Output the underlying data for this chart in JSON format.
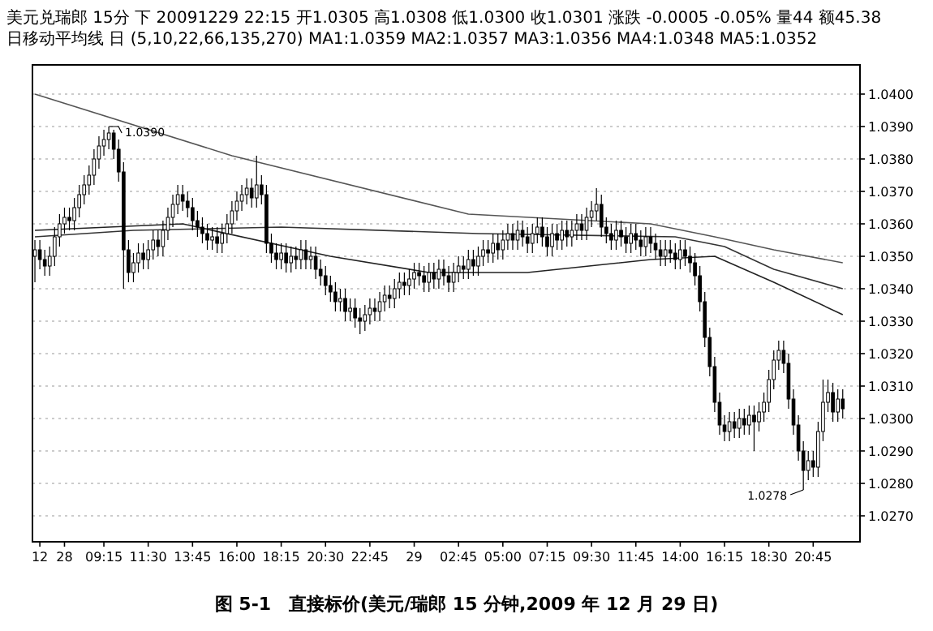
{
  "chart_data": {
    "type": "candlestick",
    "title": "图 5-1　直接标价(美元/瑞郎 15 分钟,2009 年 12 月 29 日)",
    "annotations": [
      "美元兑瑞郎 15分 下 20091229 22:15 开1.0305 高1.0308 低1.0300 收1.0301 涨跌 -0.0005 -0.05% 量44 额45.38",
      "日移动平均线 日 (5,10,22,66,135,270) MA1:1.0359 MA2:1.0357 MA3:1.0356 MA4:1.0348 MA5:1.0352",
      "1.0390",
      "1.0278"
    ],
    "categories": [
      null,
      "12",
      null,
      null,
      null,
      null,
      "28",
      null,
      null,
      null,
      null,
      null,
      null,
      null,
      "09:15",
      null,
      null,
      null,
      null,
      null,
      null,
      null,
      null,
      "11:30",
      null,
      null,
      null,
      null,
      null,
      null,
      null,
      null,
      "13:45",
      null,
      null,
      null,
      null,
      null,
      null,
      null,
      null,
      "16:00",
      null,
      null,
      null,
      null,
      null,
      null,
      null,
      null,
      "18:15",
      null,
      null,
      null,
      null,
      null,
      null,
      null,
      null,
      "20:30",
      null,
      null,
      null,
      null,
      null,
      null,
      null,
      null,
      "22:45",
      null,
      null,
      null,
      null,
      null,
      null,
      null,
      null,
      "29",
      null,
      null,
      null,
      null,
      null,
      null,
      null,
      null,
      "02:45",
      null,
      null,
      null,
      null,
      null,
      null,
      null,
      null,
      "05:00",
      null,
      null,
      null,
      null,
      null,
      null,
      null,
      null,
      "07:15",
      null,
      null,
      null,
      null,
      null,
      null,
      null,
      null,
      "09:30",
      null,
      null,
      null,
      null,
      null,
      null,
      null,
      null,
      "11:45",
      null,
      null,
      null,
      null,
      null,
      null,
      null,
      null,
      "14:00",
      null,
      null,
      null,
      null,
      null,
      null,
      null,
      null,
      "16:15",
      null,
      null,
      null,
      null,
      null,
      null,
      null,
      null,
      "18:30",
      null,
      null,
      null,
      null,
      null,
      null,
      null,
      null,
      "20:45",
      null,
      null,
      null,
      null,
      null,
      null,
      null,
      null,
      null
    ],
    "ohlc": [
      [
        1.035,
        1.0355,
        1.0342,
        1.0352
      ],
      [
        1.0352,
        1.0355,
        1.0346,
        1.0349
      ],
      [
        1.0349,
        1.0352,
        1.0344,
        1.0347
      ],
      [
        1.0347,
        1.0353,
        1.0344,
        1.035
      ],
      [
        1.035,
        1.0359,
        1.0347,
        1.0356
      ],
      [
        1.0356,
        1.0363,
        1.0353,
        1.036
      ],
      [
        1.036,
        1.0365,
        1.0357,
        1.0362
      ],
      [
        1.0362,
        1.0365,
        1.0358,
        1.0361
      ],
      [
        1.0361,
        1.0368,
        1.0358,
        1.0365
      ],
      [
        1.0365,
        1.0372,
        1.0362,
        1.0369
      ],
      [
        1.0369,
        1.0375,
        1.0366,
        1.0372
      ],
      [
        1.0372,
        1.0378,
        1.0369,
        1.0375
      ],
      [
        1.0375,
        1.0383,
        1.0372,
        1.038
      ],
      [
        1.038,
        1.0387,
        1.0377,
        1.0384
      ],
      [
        1.0384,
        1.0389,
        1.0381,
        1.0386
      ],
      [
        1.0386,
        1.039,
        1.0383,
        1.0388
      ],
      [
        1.0388,
        1.0389,
        1.038,
        1.0383
      ],
      [
        1.0383,
        1.0386,
        1.0373,
        1.0376
      ],
      [
        1.0376,
        1.0379,
        1.034,
        1.0352
      ],
      [
        1.0352,
        1.0355,
        1.0342,
        1.0345
      ],
      [
        1.0345,
        1.0351,
        1.0342,
        1.0348
      ],
      [
        1.0348,
        1.0354,
        1.0345,
        1.0351
      ],
      [
        1.0351,
        1.0354,
        1.0346,
        1.0349
      ],
      [
        1.0349,
        1.0355,
        1.0346,
        1.0352
      ],
      [
        1.0352,
        1.0358,
        1.0349,
        1.0355
      ],
      [
        1.0355,
        1.0358,
        1.035,
        1.0353
      ],
      [
        1.0353,
        1.0361,
        1.035,
        1.0358
      ],
      [
        1.0358,
        1.0365,
        1.0355,
        1.0362
      ],
      [
        1.0362,
        1.0369,
        1.0359,
        1.0366
      ],
      [
        1.0366,
        1.0372,
        1.0363,
        1.0369
      ],
      [
        1.0369,
        1.0372,
        1.0364,
        1.0367
      ],
      [
        1.0367,
        1.037,
        1.0362,
        1.0365
      ],
      [
        1.0365,
        1.0368,
        1.0358,
        1.0361
      ],
      [
        1.0361,
        1.0364,
        1.0356,
        1.0359
      ],
      [
        1.0359,
        1.0362,
        1.0354,
        1.0357
      ],
      [
        1.0357,
        1.036,
        1.0352,
        1.0355
      ],
      [
        1.0355,
        1.0359,
        1.0352,
        1.0356
      ],
      [
        1.0356,
        1.0359,
        1.0351,
        1.0354
      ],
      [
        1.0354,
        1.036,
        1.0351,
        1.0357
      ],
      [
        1.0357,
        1.0363,
        1.0354,
        1.036
      ],
      [
        1.036,
        1.0367,
        1.0357,
        1.0364
      ],
      [
        1.0364,
        1.037,
        1.0361,
        1.0367
      ],
      [
        1.0367,
        1.0372,
        1.0364,
        1.0369
      ],
      [
        1.0369,
        1.0374,
        1.0366,
        1.0371
      ],
      [
        1.0371,
        1.0374,
        1.0365,
        1.0368
      ],
      [
        1.0368,
        1.0381,
        1.0365,
        1.0372
      ],
      [
        1.0372,
        1.0375,
        1.0366,
        1.0369
      ],
      [
        1.0369,
        1.0372,
        1.0351,
        1.0354
      ],
      [
        1.0354,
        1.0357,
        1.0348,
        1.0351
      ],
      [
        1.0351,
        1.0354,
        1.0346,
        1.0349
      ],
      [
        1.0349,
        1.0354,
        1.0346,
        1.0351
      ],
      [
        1.0351,
        1.0354,
        1.0345,
        1.0348
      ],
      [
        1.0348,
        1.0353,
        1.0345,
        1.035
      ],
      [
        1.035,
        1.0353,
        1.0346,
        1.0349
      ],
      [
        1.0349,
        1.0355,
        1.0346,
        1.0352
      ],
      [
        1.0352,
        1.0355,
        1.0346,
        1.0349
      ],
      [
        1.0349,
        1.0353,
        1.0346,
        1.035
      ],
      [
        1.035,
        1.0353,
        1.0343,
        1.0346
      ],
      [
        1.0346,
        1.0349,
        1.0341,
        1.0344
      ],
      [
        1.0344,
        1.0347,
        1.0338,
        1.0341
      ],
      [
        1.0341,
        1.0344,
        1.0336,
        1.0339
      ],
      [
        1.0339,
        1.0342,
        1.0333,
        1.0336
      ],
      [
        1.0336,
        1.034,
        1.0333,
        1.0337
      ],
      [
        1.0337,
        1.034,
        1.033,
        1.0333
      ],
      [
        1.0333,
        1.0337,
        1.033,
        1.0334
      ],
      [
        1.0334,
        1.0337,
        1.0328,
        1.0331
      ],
      [
        1.0331,
        1.0334,
        1.0326,
        1.033
      ],
      [
        1.033,
        1.0335,
        1.0327,
        1.0332
      ],
      [
        1.0332,
        1.0337,
        1.0329,
        1.0334
      ],
      [
        1.0334,
        1.0337,
        1.033,
        1.0333
      ],
      [
        1.0333,
        1.0339,
        1.033,
        1.0336
      ],
      [
        1.0336,
        1.0341,
        1.0333,
        1.0338
      ],
      [
        1.0338,
        1.0341,
        1.0334,
        1.0337
      ],
      [
        1.0337,
        1.0343,
        1.0334,
        1.034
      ],
      [
        1.034,
        1.0345,
        1.0337,
        1.0342
      ],
      [
        1.0342,
        1.0345,
        1.0338,
        1.0341
      ],
      [
        1.0341,
        1.0346,
        1.0338,
        1.0343
      ],
      [
        1.0343,
        1.0348,
        1.034,
        1.0345
      ],
      [
        1.0345,
        1.0348,
        1.0341,
        1.0344
      ],
      [
        1.0344,
        1.0347,
        1.0339,
        1.0342
      ],
      [
        1.0342,
        1.0348,
        1.0339,
        1.0345
      ],
      [
        1.0345,
        1.0348,
        1.034,
        1.0343
      ],
      [
        1.0343,
        1.0349,
        1.034,
        1.0346
      ],
      [
        1.0346,
        1.0349,
        1.0341,
        1.0344
      ],
      [
        1.0344,
        1.0347,
        1.0339,
        1.0342
      ],
      [
        1.0342,
        1.0348,
        1.0339,
        1.0345
      ],
      [
        1.0345,
        1.035,
        1.0342,
        1.0347
      ],
      [
        1.0347,
        1.035,
        1.0343,
        1.0346
      ],
      [
        1.0346,
        1.0352,
        1.0343,
        1.0349
      ],
      [
        1.0349,
        1.0352,
        1.0344,
        1.0347
      ],
      [
        1.0347,
        1.0353,
        1.0344,
        1.035
      ],
      [
        1.035,
        1.0355,
        1.0347,
        1.0352
      ],
      [
        1.0352,
        1.0355,
        1.0348,
        1.0351
      ],
      [
        1.0351,
        1.0357,
        1.0348,
        1.0354
      ],
      [
        1.0354,
        1.0357,
        1.0349,
        1.0352
      ],
      [
        1.0352,
        1.0358,
        1.0349,
        1.0355
      ],
      [
        1.0355,
        1.036,
        1.0352,
        1.0357
      ],
      [
        1.0357,
        1.036,
        1.0352,
        1.0355
      ],
      [
        1.0355,
        1.0361,
        1.0352,
        1.0358
      ],
      [
        1.0358,
        1.0361,
        1.0353,
        1.0356
      ],
      [
        1.0356,
        1.0359,
        1.0351,
        1.0354
      ],
      [
        1.0354,
        1.036,
        1.0351,
        1.0357
      ],
      [
        1.0357,
        1.0362,
        1.0354,
        1.0359
      ],
      [
        1.0359,
        1.0362,
        1.0353,
        1.0356
      ],
      [
        1.0356,
        1.0359,
        1.035,
        1.0353
      ],
      [
        1.0353,
        1.036,
        1.035,
        1.0357
      ],
      [
        1.0357,
        1.036,
        1.0352,
        1.0355
      ],
      [
        1.0355,
        1.0361,
        1.0352,
        1.0358
      ],
      [
        1.0358,
        1.0361,
        1.0353,
        1.0356
      ],
      [
        1.0356,
        1.0361,
        1.0353,
        1.0358
      ],
      [
        1.0358,
        1.0363,
        1.0355,
        1.036
      ],
      [
        1.036,
        1.0363,
        1.0355,
        1.0358
      ],
      [
        1.0358,
        1.0365,
        1.0355,
        1.0362
      ],
      [
        1.0362,
        1.0367,
        1.0359,
        1.0364
      ],
      [
        1.0364,
        1.0371,
        1.0361,
        1.0366
      ],
      [
        1.0366,
        1.0369,
        1.0356,
        1.0359
      ],
      [
        1.0359,
        1.0362,
        1.0354,
        1.0357
      ],
      [
        1.0357,
        1.036,
        1.0352,
        1.0355
      ],
      [
        1.0355,
        1.0361,
        1.0352,
        1.0358
      ],
      [
        1.0358,
        1.0361,
        1.0353,
        1.0356
      ],
      [
        1.0356,
        1.0359,
        1.0351,
        1.0354
      ],
      [
        1.0354,
        1.036,
        1.0351,
        1.0357
      ],
      [
        1.0357,
        1.036,
        1.0352,
        1.0355
      ],
      [
        1.0355,
        1.0358,
        1.035,
        1.0353
      ],
      [
        1.0353,
        1.0359,
        1.035,
        1.0356
      ],
      [
        1.0356,
        1.0359,
        1.0351,
        1.0354
      ],
      [
        1.0354,
        1.0357,
        1.0349,
        1.0352
      ],
      [
        1.0352,
        1.0355,
        1.0347,
        1.035
      ],
      [
        1.035,
        1.0355,
        1.0347,
        1.0352
      ],
      [
        1.0352,
        1.0355,
        1.0348,
        1.0351
      ],
      [
        1.0351,
        1.0354,
        1.0346,
        1.0349
      ],
      [
        1.0349,
        1.0355,
        1.0346,
        1.0352
      ],
      [
        1.0352,
        1.0355,
        1.0347,
        1.035
      ],
      [
        1.035,
        1.0353,
        1.0345,
        1.0348
      ],
      [
        1.0348,
        1.0351,
        1.0341,
        1.0344
      ],
      [
        1.0344,
        1.0347,
        1.0333,
        1.0336
      ],
      [
        1.0336,
        1.0339,
        1.0322,
        1.0325
      ],
      [
        1.0325,
        1.0328,
        1.0313,
        1.0316
      ],
      [
        1.0316,
        1.0319,
        1.0302,
        1.0305
      ],
      [
        1.0305,
        1.0308,
        1.0295,
        1.0298
      ],
      [
        1.0298,
        1.0301,
        1.0293,
        1.0296
      ],
      [
        1.0296,
        1.0302,
        1.0293,
        1.0299
      ],
      [
        1.0299,
        1.0302,
        1.0294,
        1.0297
      ],
      [
        1.0297,
        1.0303,
        1.0294,
        1.03
      ],
      [
        1.03,
        1.0303,
        1.0295,
        1.0298
      ],
      [
        1.0298,
        1.0304,
        1.0295,
        1.0301
      ],
      [
        1.0301,
        1.0304,
        1.029,
        1.0299
      ],
      [
        1.0299,
        1.0305,
        1.0296,
        1.0302
      ],
      [
        1.0302,
        1.0308,
        1.0299,
        1.0305
      ],
      [
        1.0305,
        1.0315,
        1.0302,
        1.0312
      ],
      [
        1.0312,
        1.0321,
        1.0309,
        1.0318
      ],
      [
        1.0318,
        1.0324,
        1.0315,
        1.0321
      ],
      [
        1.0321,
        1.0324,
        1.0314,
        1.0317
      ],
      [
        1.0317,
        1.032,
        1.0303,
        1.0306
      ],
      [
        1.0306,
        1.0309,
        1.0295,
        1.0298
      ],
      [
        1.0298,
        1.0301,
        1.0287,
        1.029
      ],
      [
        1.029,
        1.0293,
        1.0278,
        1.0284
      ],
      [
        1.0284,
        1.029,
        1.0281,
        1.0287
      ],
      [
        1.0287,
        1.029,
        1.0282,
        1.0285
      ],
      [
        1.0285,
        1.0299,
        1.0282,
        1.0296
      ],
      [
        1.0296,
        1.0312,
        1.0293,
        1.0305
      ],
      [
        1.0305,
        1.0312,
        1.0302,
        1.0308
      ],
      [
        1.0308,
        1.0311,
        1.0299,
        1.0302
      ],
      [
        1.0302,
        1.0309,
        1.0299,
        1.0306
      ],
      [
        1.0306,
        1.0309,
        1.03,
        1.0303
      ],
      null,
      null,
      null
    ],
    "series": [
      {
        "type": "line",
        "color": "#555555",
        "values": [
          1.04,
          null,
          null,
          null,
          null,
          null,
          null,
          null,
          null,
          null,
          null,
          null,
          null,
          null,
          null,
          null,
          null,
          null,
          null,
          null,
          null,
          null,
          null,
          null,
          null,
          null,
          null,
          null,
          null,
          null,
          null,
          null,
          null,
          null,
          null,
          null,
          null,
          null,
          null,
          null,
          1.0381,
          null,
          null,
          null,
          null,
          null,
          null,
          null,
          null,
          null,
          null,
          null,
          null,
          null,
          null,
          null,
          null,
          null,
          null,
          null,
          null,
          null,
          null,
          null,
          null,
          null,
          null,
          null,
          null,
          null,
          null,
          null,
          null,
          null,
          null,
          null,
          null,
          null,
          null,
          null,
          null,
          null,
          null,
          null,
          null,
          null,
          null,
          null,
          1.0363,
          null,
          null,
          null,
          null,
          null,
          null,
          null,
          null,
          null,
          null,
          null,
          null,
          null,
          null,
          null,
          null,
          null,
          null,
          null,
          null,
          null,
          null,
          null,
          null,
          null,
          null,
          null,
          null,
          null,
          null,
          null,
          null,
          null,
          null,
          null,
          null,
          1.036,
          null,
          null,
          null,
          null,
          null,
          null,
          null,
          null,
          null,
          null,
          null,
          null,
          1.0356,
          null,
          null,
          null,
          null,
          null,
          null,
          null,
          null,
          null,
          null,
          null,
          1.0352,
          null,
          null,
          null,
          null,
          null,
          null,
          null,
          null,
          null,
          null,
          null,
          null,
          null,
          1.0348,
          null,
          null,
          null
        ]
      },
      {
        "type": "line",
        "color": "#333333",
        "values": [
          1.0356,
          null,
          null,
          null,
          null,
          null,
          null,
          null,
          null,
          null,
          null,
          null,
          null,
          null,
          null,
          null,
          null,
          null,
          null,
          null,
          1.0358,
          null,
          null,
          null,
          null,
          null,
          null,
          null,
          null,
          null,
          null,
          null,
          null,
          null,
          null,
          null,
          null,
          null,
          null,
          null,
          null,
          null,
          null,
          null,
          null,
          null,
          null,
          null,
          null,
          null,
          1.0359,
          null,
          null,
          null,
          null,
          null,
          null,
          null,
          null,
          null,
          null,
          null,
          null,
          null,
          null,
          null,
          null,
          null,
          null,
          null,
          null,
          null,
          null,
          null,
          null,
          null,
          null,
          null,
          null,
          null,
          null,
          null,
          null,
          null,
          null,
          null,
          null,
          null,
          null,
          null,
          1.0357,
          null,
          null,
          null,
          null,
          null,
          null,
          null,
          null,
          null,
          null,
          null,
          null,
          null,
          null,
          null,
          null,
          null,
          null,
          null,
          null,
          null,
          null,
          null,
          null,
          null,
          null,
          null,
          null,
          null,
          null,
          null,
          null,
          null,
          null,
          null,
          null,
          null,
          null,
          null,
          1.0356,
          null,
          null,
          null,
          null,
          null,
          null,
          null,
          null,
          null,
          1.0353,
          null,
          null,
          null,
          null,
          null,
          null,
          null,
          null,
          null,
          1.0346,
          null,
          null,
          null,
          null,
          null,
          null,
          null,
          null,
          null,
          null,
          null,
          null,
          null,
          1.034,
          null,
          null,
          null
        ]
      },
      {
        "type": "line",
        "color": "#222222",
        "values": [
          1.0358,
          null,
          null,
          null,
          null,
          null,
          null,
          null,
          null,
          null,
          null,
          null,
          null,
          null,
          null,
          null,
          null,
          null,
          null,
          null,
          null,
          null,
          null,
          null,
          null,
          null,
          null,
          null,
          null,
          null,
          1.036,
          null,
          null,
          null,
          null,
          null,
          null,
          null,
          null,
          null,
          null,
          null,
          null,
          null,
          null,
          null,
          null,
          null,
          null,
          null,
          null,
          null,
          null,
          null,
          null,
          null,
          null,
          null,
          null,
          null,
          1.035,
          null,
          null,
          null,
          null,
          null,
          null,
          null,
          null,
          null,
          null,
          null,
          null,
          null,
          null,
          null,
          null,
          null,
          null,
          null,
          1.0345,
          null,
          null,
          null,
          null,
          null,
          null,
          null,
          null,
          null,
          null,
          null,
          null,
          null,
          null,
          null,
          null,
          null,
          null,
          null,
          1.0345,
          null,
          null,
          null,
          null,
          null,
          null,
          null,
          null,
          null,
          null,
          null,
          null,
          null,
          null,
          null,
          null,
          null,
          null,
          null,
          null,
          null,
          null,
          null,
          null,
          1.0349,
          null,
          null,
          null,
          null,
          null,
          null,
          null,
          null,
          null,
          null,
          null,
          null,
          1.035,
          null,
          null,
          null,
          null,
          null,
          null,
          null,
          null,
          null,
          null,
          null,
          1.0342,
          null,
          null,
          null,
          null,
          null,
          null,
          null,
          null,
          null,
          null,
          null,
          null,
          null,
          1.0332,
          null,
          null,
          null
        ]
      }
    ],
    "ylim": [
      1.0262,
      1.0409
    ],
    "yticks": [
      {
        "value": 1.027,
        "label": "1.0270"
      },
      {
        "value": 1.028,
        "label": "1.0280"
      },
      {
        "value": 1.029,
        "label": "1.0290"
      },
      {
        "value": 1.03,
        "label": "1.0300"
      },
      {
        "value": 1.031,
        "label": "1.0310"
      },
      {
        "value": 1.032,
        "label": "1.0320"
      },
      {
        "value": 1.033,
        "label": "1.0330"
      },
      {
        "value": 1.034,
        "label": "1.0340"
      },
      {
        "value": 1.035,
        "label": "1.0350"
      },
      {
        "value": 1.036,
        "label": "1.0360"
      },
      {
        "value": 1.037,
        "label": "1.0370"
      },
      {
        "value": 1.038,
        "label": "1.0380"
      },
      {
        "value": 1.039,
        "label": "1.0390"
      },
      {
        "value": 1.04,
        "label": "1.0400"
      }
    ],
    "grid": "y"
  }
}
